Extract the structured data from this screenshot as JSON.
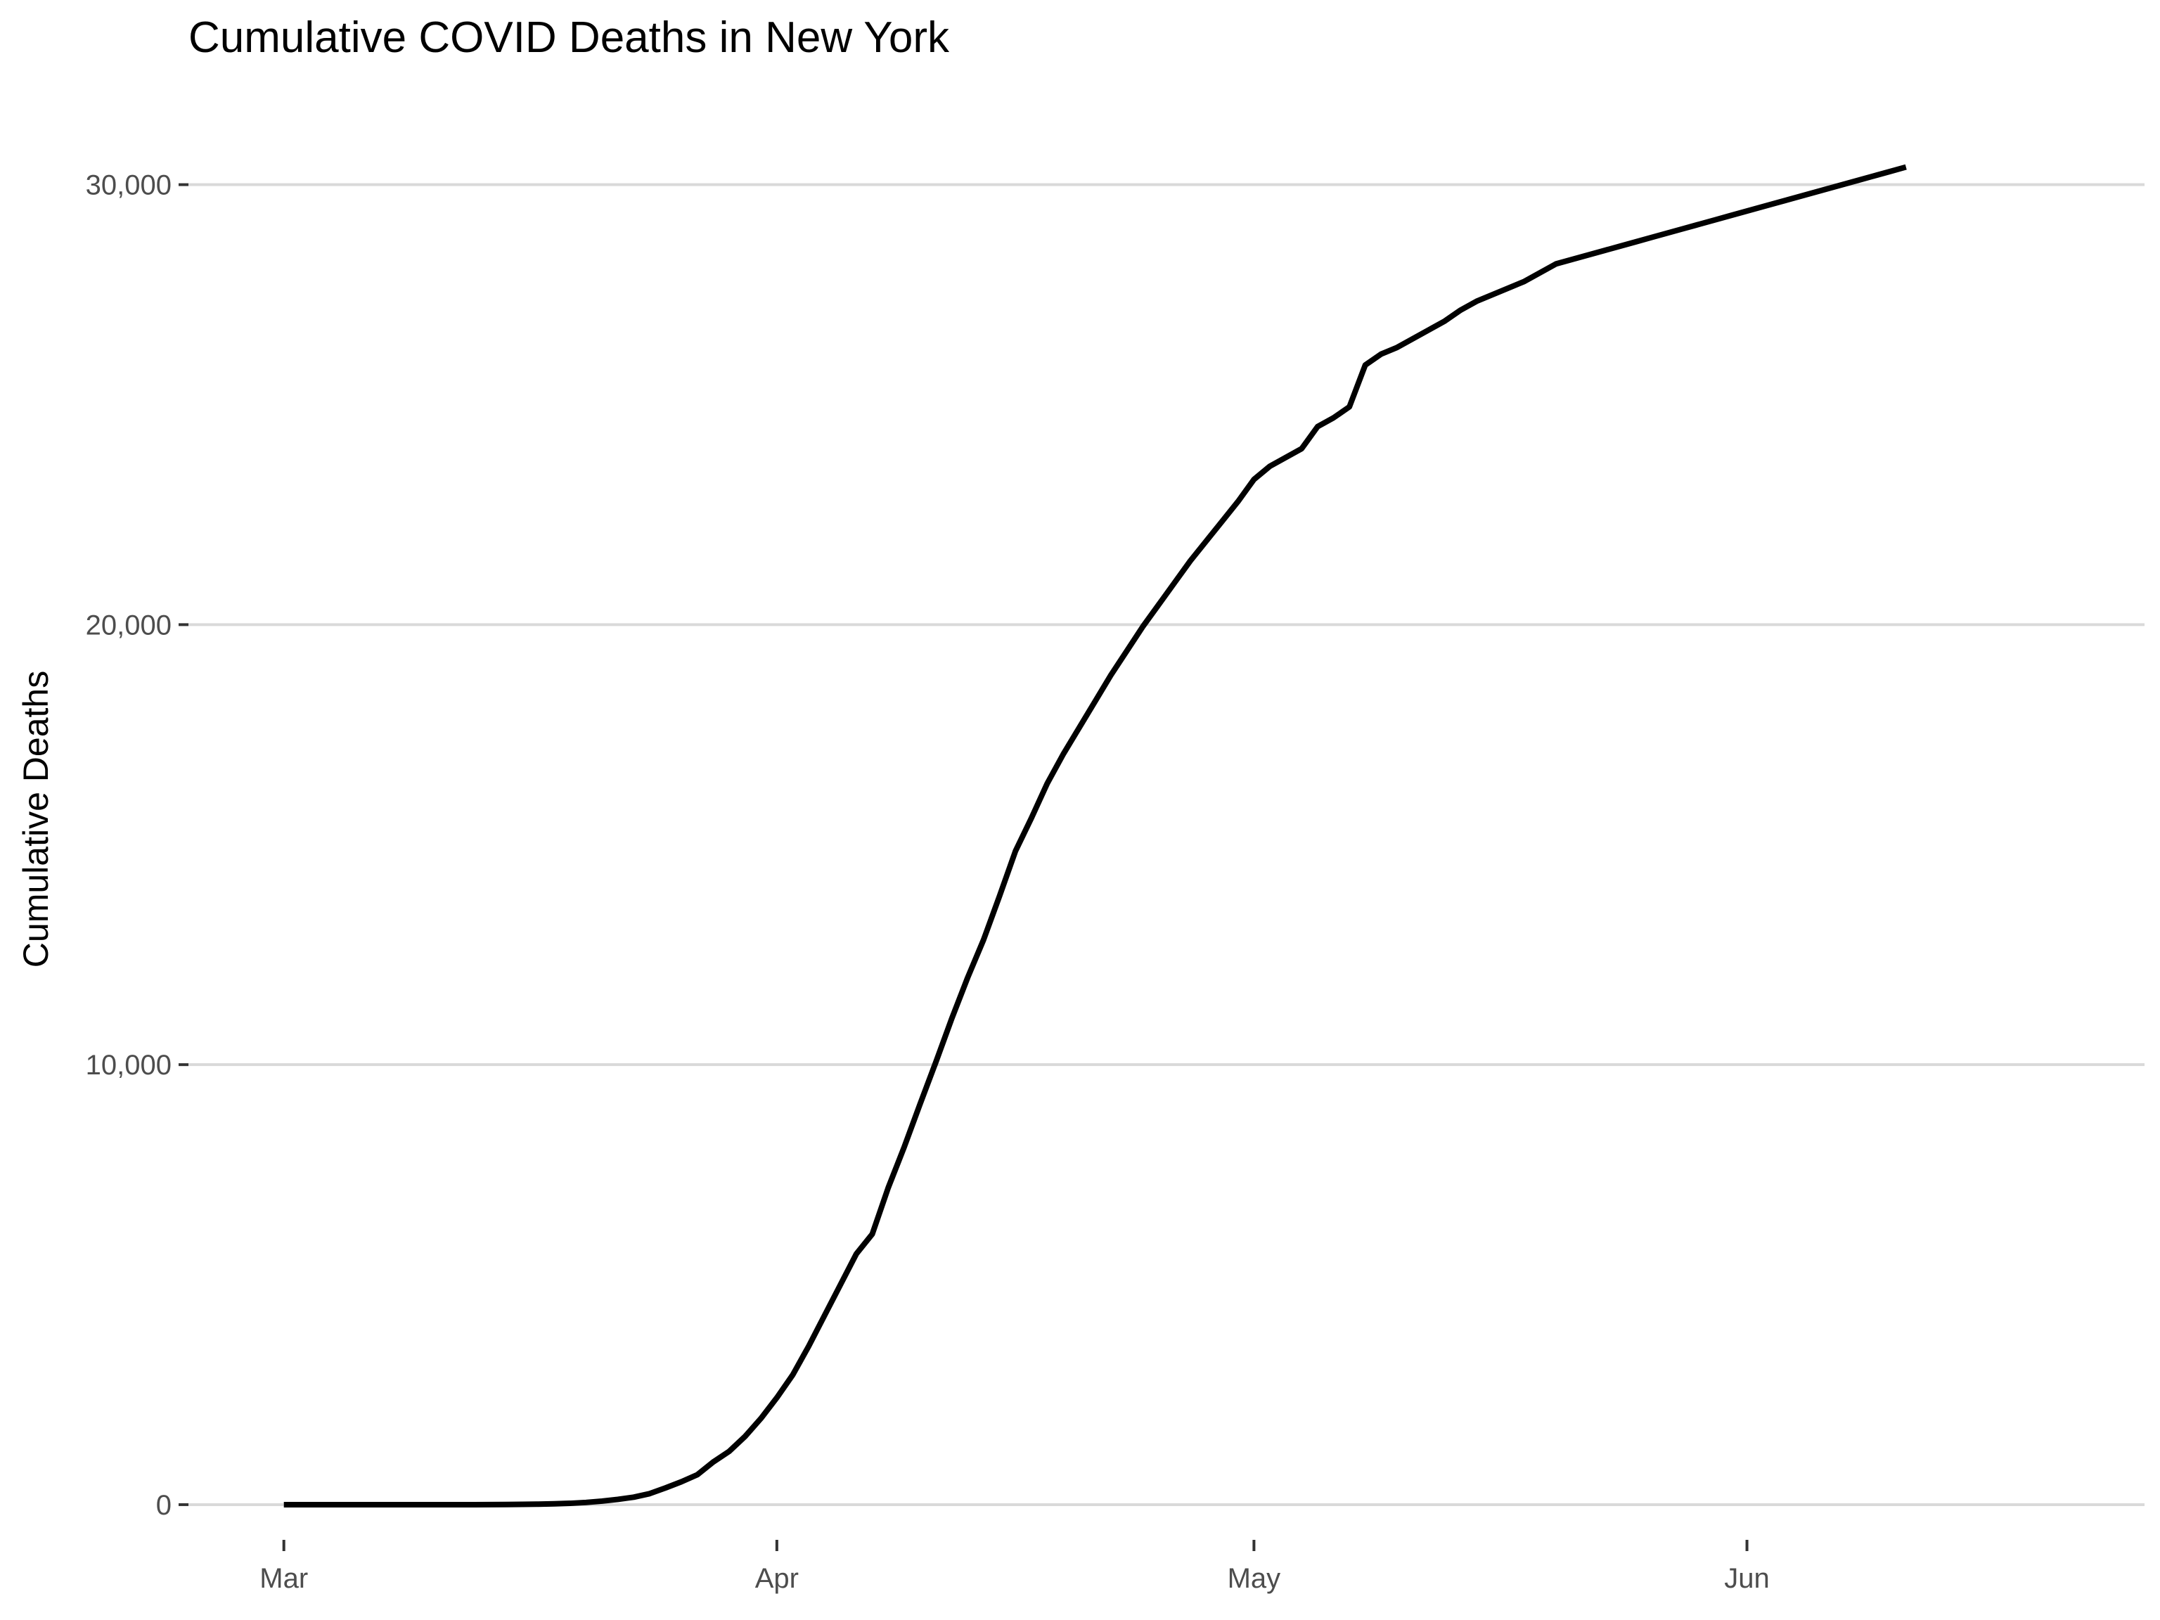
{
  "chart_data": {
    "type": "line",
    "title": "Cumulative COVID Deaths in New York",
    "xlabel": "",
    "ylabel": "Cumulative Deaths",
    "grid": "horizontal major gridlines",
    "legend": "none",
    "line_color": "#000000",
    "grid_color": "#d9d9d9",
    "x_axis": {
      "type": "date",
      "range": [
        "2020-02-24",
        "2020-06-26"
      ],
      "ticks": [
        {
          "date": "2020-03-01",
          "label": "Mar"
        },
        {
          "date": "2020-04-01",
          "label": "Apr"
        },
        {
          "date": "2020-05-01",
          "label": "May"
        },
        {
          "date": "2020-06-01",
          "label": "Jun"
        }
      ]
    },
    "y_axis": {
      "range": [
        -800,
        31400
      ],
      "ticks": [
        {
          "value": 0,
          "label": "0"
        },
        {
          "value": 10000,
          "label": "10,000"
        },
        {
          "value": 20000,
          "label": "20,000"
        },
        {
          "value": 30000,
          "label": "30,000"
        }
      ]
    },
    "x": [
      "2020-03-01",
      "2020-03-02",
      "2020-03-03",
      "2020-03-04",
      "2020-03-05",
      "2020-03-06",
      "2020-03-07",
      "2020-03-08",
      "2020-03-09",
      "2020-03-10",
      "2020-03-11",
      "2020-03-12",
      "2020-03-13",
      "2020-03-14",
      "2020-03-15",
      "2020-03-16",
      "2020-03-17",
      "2020-03-18",
      "2020-03-19",
      "2020-03-20",
      "2020-03-21",
      "2020-03-22",
      "2020-03-23",
      "2020-03-24",
      "2020-03-25",
      "2020-03-26",
      "2020-03-27",
      "2020-03-28",
      "2020-03-29",
      "2020-03-30",
      "2020-03-31",
      "2020-04-01",
      "2020-04-02",
      "2020-04-03",
      "2020-04-04",
      "2020-04-05",
      "2020-04-06",
      "2020-04-07",
      "2020-04-08",
      "2020-04-09",
      "2020-04-10",
      "2020-04-11",
      "2020-04-12",
      "2020-04-13",
      "2020-04-14",
      "2020-04-15",
      "2020-04-16",
      "2020-04-17",
      "2020-04-18",
      "2020-04-19",
      "2020-04-20",
      "2020-04-21",
      "2020-04-22",
      "2020-04-23",
      "2020-04-24",
      "2020-04-25",
      "2020-04-26",
      "2020-04-27",
      "2020-04-28",
      "2020-04-29",
      "2020-04-30",
      "2020-05-01",
      "2020-05-02",
      "2020-05-03",
      "2020-05-04",
      "2020-05-05",
      "2020-05-06",
      "2020-05-07",
      "2020-05-08",
      "2020-05-09",
      "2020-05-10",
      "2020-05-11",
      "2020-05-12",
      "2020-05-13",
      "2020-05-14",
      "2020-05-15",
      "2020-05-16",
      "2020-05-17",
      "2020-05-18",
      "2020-05-19",
      "2020-05-20",
      "2020-05-21",
      "2020-05-22",
      "2020-05-23",
      "2020-05-24",
      "2020-05-25",
      "2020-05-26",
      "2020-05-27",
      "2020-05-28",
      "2020-05-29",
      "2020-05-30",
      "2020-05-31",
      "2020-06-01",
      "2020-06-02",
      "2020-06-03",
      "2020-06-04",
      "2020-06-05",
      "2020-06-06",
      "2020-06-07",
      "2020-06-08",
      "2020-06-09",
      "2020-06-10",
      "2020-06-11"
    ],
    "series": [
      {
        "values": [
          0,
          0,
          0,
          0,
          0,
          0,
          0,
          0,
          0,
          0,
          0,
          0,
          0,
          1,
          3,
          7,
          12,
          20,
          30,
          50,
          80,
          120,
          170,
          250,
          380,
          520,
          680,
          970,
          1210,
          1550,
          1960,
          2430,
          2950,
          3600,
          4300,
          5000,
          5700,
          6150,
          7200,
          8120,
          9100,
          10060,
          11050,
          11980,
          12840,
          13830,
          14850,
          15600,
          16390,
          17050,
          17650,
          18250,
          18850,
          19400,
          19950,
          20450,
          20950,
          21450,
          21900,
          22350,
          22800,
          23300,
          23600,
          23800,
          24000,
          24500,
          24700,
          24950,
          25900,
          26150,
          26300,
          26500,
          26700,
          26900,
          27150,
          27350,
          27500,
          27650,
          27800,
          28000,
          28200,
          28300,
          28400,
          28500,
          28600,
          28700,
          28800,
          28900,
          29000,
          29100,
          29200,
          29300,
          29400,
          29500,
          29600,
          29700,
          29800,
          29900,
          30000,
          30100,
          30200,
          30300,
          30400
        ]
      }
    ]
  }
}
